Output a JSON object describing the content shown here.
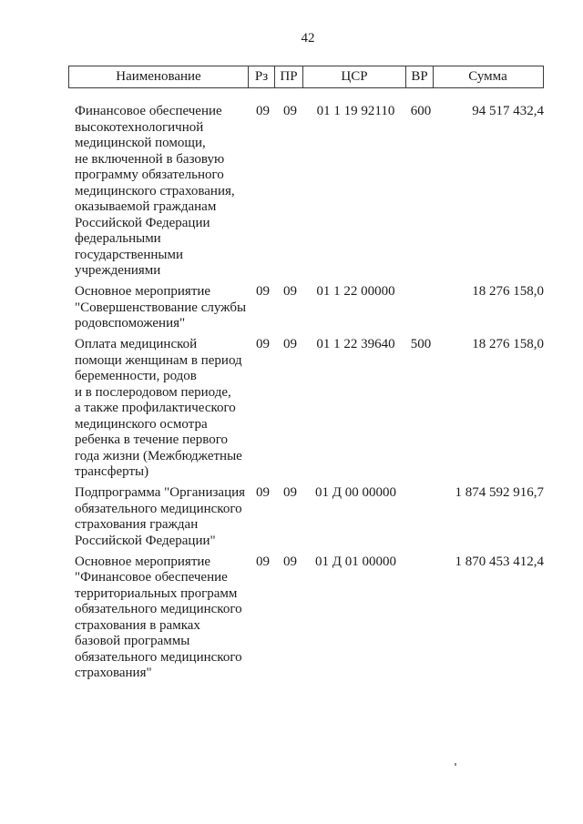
{
  "page": {
    "number": "42"
  },
  "table": {
    "headers": [
      "Наименование",
      "Рз",
      "ПР",
      "ЦСР",
      "ВР",
      "Сумма"
    ],
    "rows": [
      {
        "name": "Финансовое обеспечение\nвысокотехнологичной\nмедицинской помощи,\nне включенной в базовую\nпрограмму обязательного\nмедицинского страхования,\nоказываемой гражданам\nРоссийской Федерации\nфедеральными\nгосударственными\nучреждениями",
        "rz": "09",
        "pr": "09",
        "tsr": "01 1 19 92110",
        "vr": "600",
        "sum": "94 517 432,4"
      },
      {
        "name": "Основное мероприятие\n\"Совершенствование службы\nродовспоможения\"",
        "rz": "09",
        "pr": "09",
        "tsr": "01 1 22 00000",
        "vr": "",
        "sum": "18 276 158,0"
      },
      {
        "name": "Оплата медицинской\nпомощи женщинам в период\nбеременности, родов\nи в послеродовом периоде,\nа также профилактического\nмедицинского осмотра\nребенка в течение первого\nгода жизни (Межбюджетные\nтрансферты)",
        "rz": "09",
        "pr": "09",
        "tsr": "01 1 22 39640",
        "vr": "500",
        "sum": "18 276 158,0"
      },
      {
        "name": "Подпрограмма \"Организация\nобязательного медицинского\nстрахования граждан\nРоссийской Федерации\"",
        "rz": "09",
        "pr": "09",
        "tsr": "01 Д 00 00000",
        "vr": "",
        "sum": "1 874 592 916,7"
      },
      {
        "name": "Основное мероприятие\n\"Финансовое обеспечение\nтерриториальных программ\nобязательного медицинского\nстрахования в рамках\nбазовой программы\nобязательного медицинского\nстрахования\"",
        "rz": "09",
        "pr": "09",
        "tsr": "01 Д 01 00000",
        "vr": "",
        "sum": "1 870 453 412,4"
      }
    ]
  },
  "colors": {
    "text": "#1b1b1b",
    "border": "#3a3a3a",
    "background": "#ffffff"
  }
}
